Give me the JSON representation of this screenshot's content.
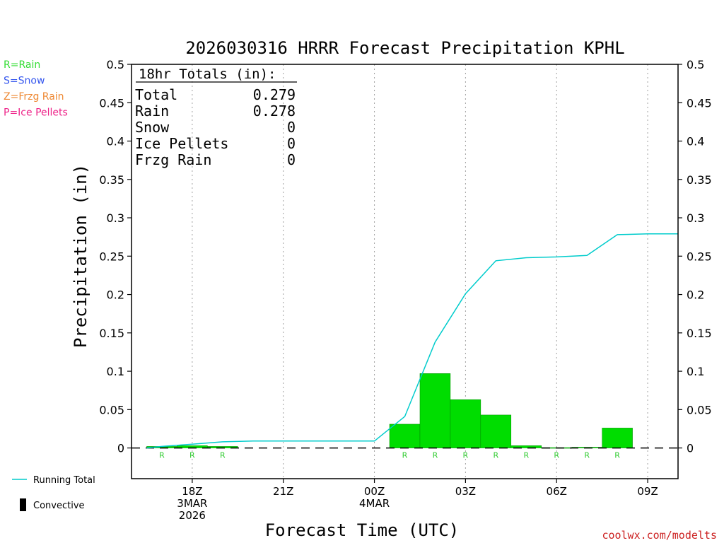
{
  "chart_data": {
    "type": "bar",
    "title": "2026030316 HRRR Forecast Precipitation KPHL",
    "xlabel": "Forecast Time (UTC)",
    "ylabel": "Precipitation (in)",
    "ylim": [
      -0.04,
      0.5
    ],
    "xlim_hours": [
      -2.0,
      16.0
    ],
    "y_ticks": [
      0,
      0.05,
      0.1,
      0.15,
      0.2,
      0.25,
      0.3,
      0.35,
      0.4,
      0.45,
      0.5
    ],
    "x_ticks": [
      {
        "hour": 0,
        "lines": [
          "18Z",
          "3MAR",
          "2026"
        ]
      },
      {
        "hour": 3,
        "lines": [
          "21Z"
        ]
      },
      {
        "hour": 6,
        "lines": [
          "00Z",
          "4MAR"
        ]
      },
      {
        "hour": 9,
        "lines": [
          "03Z"
        ]
      },
      {
        "hour": 12,
        "lines": [
          "06Z"
        ]
      },
      {
        "hour": 15,
        "lines": [
          "09Z"
        ]
      }
    ],
    "grid": "vertical dotted at each 3-hourly tick",
    "bars": [
      {
        "hour_start": -1.5,
        "hour_end": -0.5,
        "value": 0.002,
        "ptype": "R"
      },
      {
        "hour_start": -0.5,
        "hour_end": 0.5,
        "value": 0.003,
        "ptype": "R"
      },
      {
        "hour_start": 0.5,
        "hour_end": 1.5,
        "value": 0.002,
        "ptype": "R"
      },
      {
        "hour_start": 6.5,
        "hour_end": 7.5,
        "value": 0.031,
        "ptype": "R"
      },
      {
        "hour_start": 7.5,
        "hour_end": 8.5,
        "value": 0.097,
        "ptype": "R"
      },
      {
        "hour_start": 8.5,
        "hour_end": 9.5,
        "value": 0.063,
        "ptype": "R"
      },
      {
        "hour_start": 9.5,
        "hour_end": 10.5,
        "value": 0.043,
        "ptype": "R"
      },
      {
        "hour_start": 10.5,
        "hour_end": 11.5,
        "value": 0.003,
        "ptype": "R"
      },
      {
        "hour_start": 11.5,
        "hour_end": 12.5,
        "value": 0.0005,
        "ptype": "R"
      },
      {
        "hour_start": 12.5,
        "hour_end": 13.5,
        "value": 0.001,
        "ptype": "R"
      },
      {
        "hour_start": 13.5,
        "hour_end": 14.5,
        "value": 0.026,
        "ptype": "R"
      }
    ],
    "ptype_markers": [
      {
        "hour": -1,
        "label": "R"
      },
      {
        "hour": 0,
        "label": "R"
      },
      {
        "hour": 1,
        "label": "R"
      },
      {
        "hour": 7,
        "label": "R"
      },
      {
        "hour": 8,
        "label": "R"
      },
      {
        "hour": 9,
        "label": "R"
      },
      {
        "hour": 10,
        "label": "R"
      },
      {
        "hour": 11,
        "label": "R"
      },
      {
        "hour": 12,
        "label": "R"
      },
      {
        "hour": 13,
        "label": "R"
      },
      {
        "hour": 14,
        "label": "R"
      }
    ],
    "running_total": {
      "name": "Running Total",
      "x_hours": [
        -1.5,
        -1,
        0,
        1,
        2,
        3,
        4,
        5,
        6,
        7,
        8,
        9,
        10,
        11,
        12,
        13,
        14,
        15,
        16
      ],
      "values": [
        0.0,
        0.002,
        0.005,
        0.008,
        0.009,
        0.009,
        0.009,
        0.009,
        0.009,
        0.041,
        0.138,
        0.201,
        0.244,
        0.248,
        0.249,
        0.251,
        0.278,
        0.279,
        0.279
      ]
    },
    "totals_box": {
      "header": "18hr Totals (in):",
      "rows": [
        {
          "label": "Total",
          "value": "0.279"
        },
        {
          "label": "Rain",
          "value": "0.278"
        },
        {
          "label": "Snow",
          "value": "0"
        },
        {
          "label": "Ice Pellets",
          "value": "0"
        },
        {
          "label": "Frzg Rain",
          "value": "0"
        }
      ]
    },
    "ptype_legend": [
      {
        "text": "R=Rain",
        "color": "#33dd33"
      },
      {
        "text": "S=Snow",
        "color": "#3355ee"
      },
      {
        "text": "Z=Frzg Rain",
        "color": "#ee8833"
      },
      {
        "text": "P=Ice Pellets",
        "color": "#ee2288"
      }
    ],
    "series_legend": [
      {
        "text": "Running Total",
        "marker": "line",
        "color": "#00cccc"
      },
      {
        "text": "Convective",
        "marker": "bar",
        "color": "#000000"
      }
    ],
    "credit": "coolwx.com/modelts",
    "colors": {
      "bars": "#00dd00",
      "running_total": "#00cccc",
      "axis": "#000000",
      "grid": "#a0a0a0",
      "credit": "#cc2222",
      "ptype_label": "#33cc33"
    }
  }
}
